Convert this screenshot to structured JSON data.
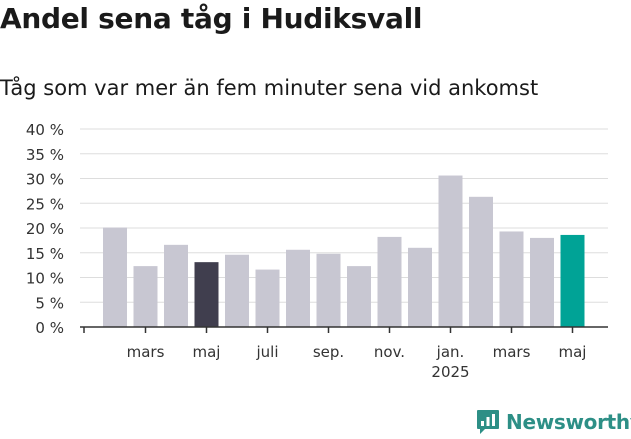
{
  "title": "Andel sena tåg i Hudiksvall",
  "subtitle": "Tåg som var mer än fem minuter sena vid ankomst",
  "brand": {
    "name": "Newsworthy",
    "color": "#2d8f86",
    "icon": "newsworthy-logo-icon"
  },
  "colors": {
    "bar": "#c8c7d2",
    "highlight_dark": "#403e4e",
    "highlight_latest": "#00a396",
    "grid": "#dddddd",
    "axis": "#333333"
  },
  "chart_data": {
    "type": "bar",
    "title": "Andel sena tåg i Hudiksvall",
    "subtitle": "Tåg som var mer än fem minuter sena vid ankomst",
    "ylim": [
      0,
      40
    ],
    "y_ticks": [
      "0 %",
      "5 %",
      "10 %",
      "15 %",
      "20 %",
      "25 %",
      "30 %",
      "35 %",
      "40 %"
    ],
    "x_tick_labels": [
      {
        "label": "mars",
        "index": 1
      },
      {
        "label": "maj",
        "index": 3
      },
      {
        "label": "juli",
        "index": 5
      },
      {
        "label": "sep.",
        "index": 7
      },
      {
        "label": "nov.",
        "index": 9
      },
      {
        "label": "jan.",
        "sublabel": "2025",
        "index": 11
      },
      {
        "label": "mars",
        "index": 13
      },
      {
        "label": "maj",
        "index": 15
      }
    ],
    "values": [
      20.1,
      12.3,
      16.6,
      13.1,
      14.6,
      11.6,
      15.6,
      14.8,
      12.3,
      18.2,
      16.0,
      30.6,
      26.3,
      19.3,
      18.0,
      18.6
    ],
    "highlights": {
      "3": "dark",
      "15": "latest"
    },
    "grid": true,
    "legend": "none"
  }
}
